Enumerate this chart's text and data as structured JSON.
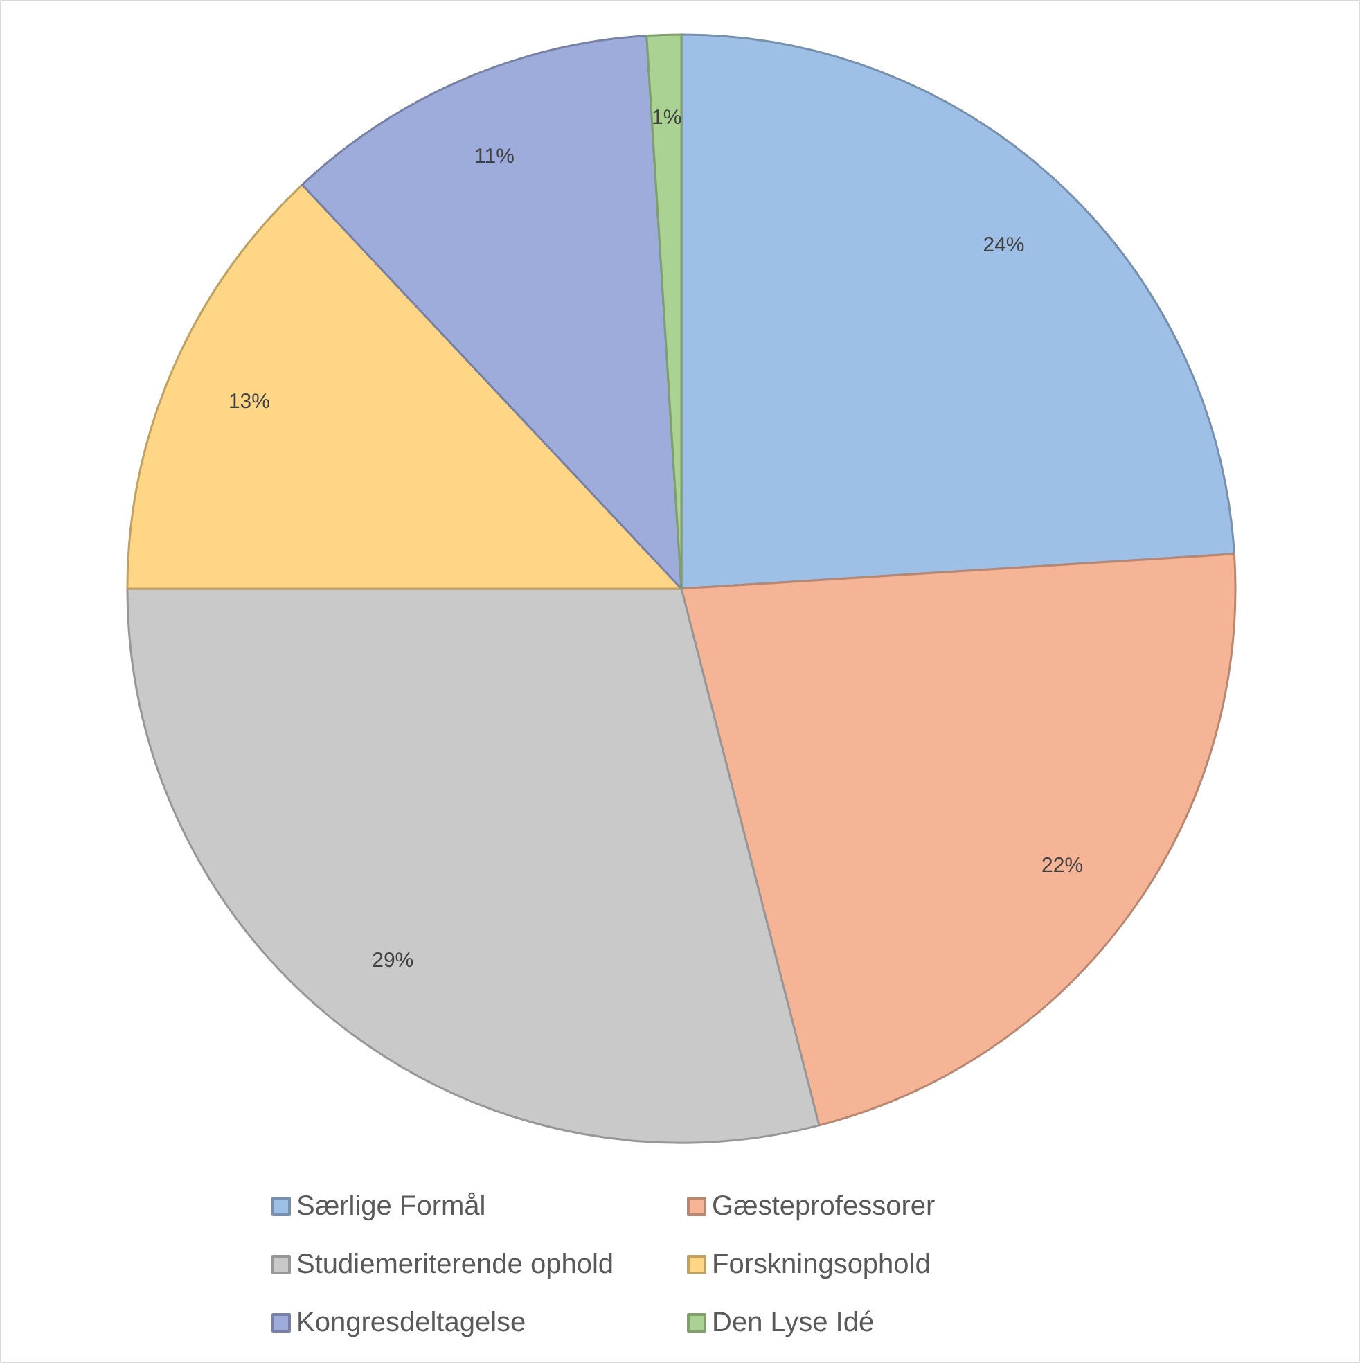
{
  "chart_data": {
    "type": "pie",
    "categories": [
      "Særlige Formål",
      "Gæsteprofessorer",
      "Studiemeriterende ophold",
      "Forskningsophold",
      "Kongresdeltagelse",
      "Den Lyse Idé"
    ],
    "values": [
      24,
      22,
      29,
      13,
      11,
      1
    ],
    "colors": [
      "#9fc0e6",
      "#f5b496",
      "#c9c9c9",
      "#ffd685",
      "#9eacdc",
      "#aad393"
    ],
    "value_labels": [
      "24%",
      "22%",
      "29%",
      "13%",
      "11%",
      "1%"
    ],
    "legend": "bottom"
  }
}
